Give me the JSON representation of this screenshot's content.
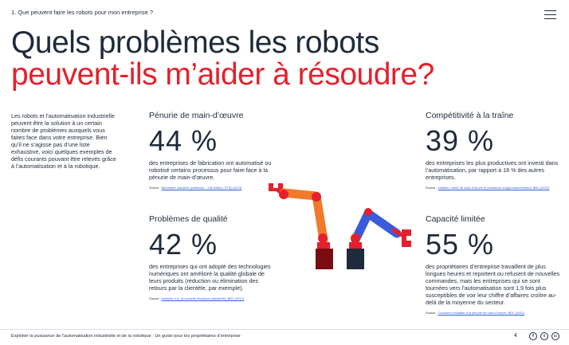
{
  "header": {
    "breadcrumb": "1. Que peuvent faire les robots pour mon entreprise ?"
  },
  "title": {
    "line1": "Quels problèmes les robots",
    "line2": "peuvent-ils m’aider à résoudre?"
  },
  "intro": "Les robots et l’automatisation industrielle peuvent être la solution à un certain nombre de problèmes auxquels vous faites face dans votre entreprise. Bien qu’il ne s’agisse pas d’une liste exhaustive, voici quelques exemples de défis courants pouvant être relevés grâce à l’automatisation et à la robotique.",
  "cards": [
    {
      "heading": "Pénurie de main-d’œuvre",
      "stat": "44 %",
      "description": "des entreprises de fabrication ont automatisé ou robotisé certains processus pour faire face à la pénurie de main-d’œuvre.",
      "source_label": "Source :",
      "source_link": "Baromètre industriel québécois – 13e édition, STIQ (2023)"
    },
    {
      "heading": "Compétitivité à la traîne",
      "stat": "39 %",
      "description": "des entreprises les plus productives ont investi dans l’automatisation, par rapport à 18 % des autres entreprises.",
      "source_label": "Source :",
      "source_link": "Inflation, rareté de main-d’œuvre et problèmes d’approvisionnement, BDC (2022)"
    },
    {
      "heading": "Problèmes de qualité",
      "stat": "42 %",
      "description": "des entreprises qui ont adopté des technologies numériques ont amélioré la qualité globale de leurs produits (réduction ou élimination des retours par la clientèle, par exemple).",
      "source_label": "Source :",
      "source_link": "Industrie 4.0 : la nouvelle révolution industrielle, BDC (2017)"
    },
    {
      "heading": "Capacité limitée",
      "stat": "55 %",
      "description": "des propriétaires d’entreprise travaillent de plus longues heures et reportent ou refusent de nouvelles commandes, mais les entreprises qui se sont tournées vers l’automatisation sont 1,9 fois plus susceptibles de voir leur chiffre d’affaires croître au-delà de la moyenne du secteur.",
      "source_label": "Source :",
      "source_link": "Comment s’adapter à la pénurie de main-d’œuvre, BDC (2021)"
    }
  ],
  "footer": {
    "text": "Exploiter la puissance de l’automatisation industrielle et de la robotique : Un guide pour les propriétaires d’entreprise",
    "page": "4",
    "social": [
      "f",
      "t",
      "in"
    ]
  },
  "colors": {
    "navy": "#1f2a3a",
    "red": "#e5202c",
    "orange": "#f07a2a",
    "blue": "#3b5bdb",
    "link": "#2a5fd8"
  },
  "icons": [
    "hamburger-menu-icon",
    "facebook-icon",
    "twitter-icon",
    "linkedin-icon"
  ]
}
